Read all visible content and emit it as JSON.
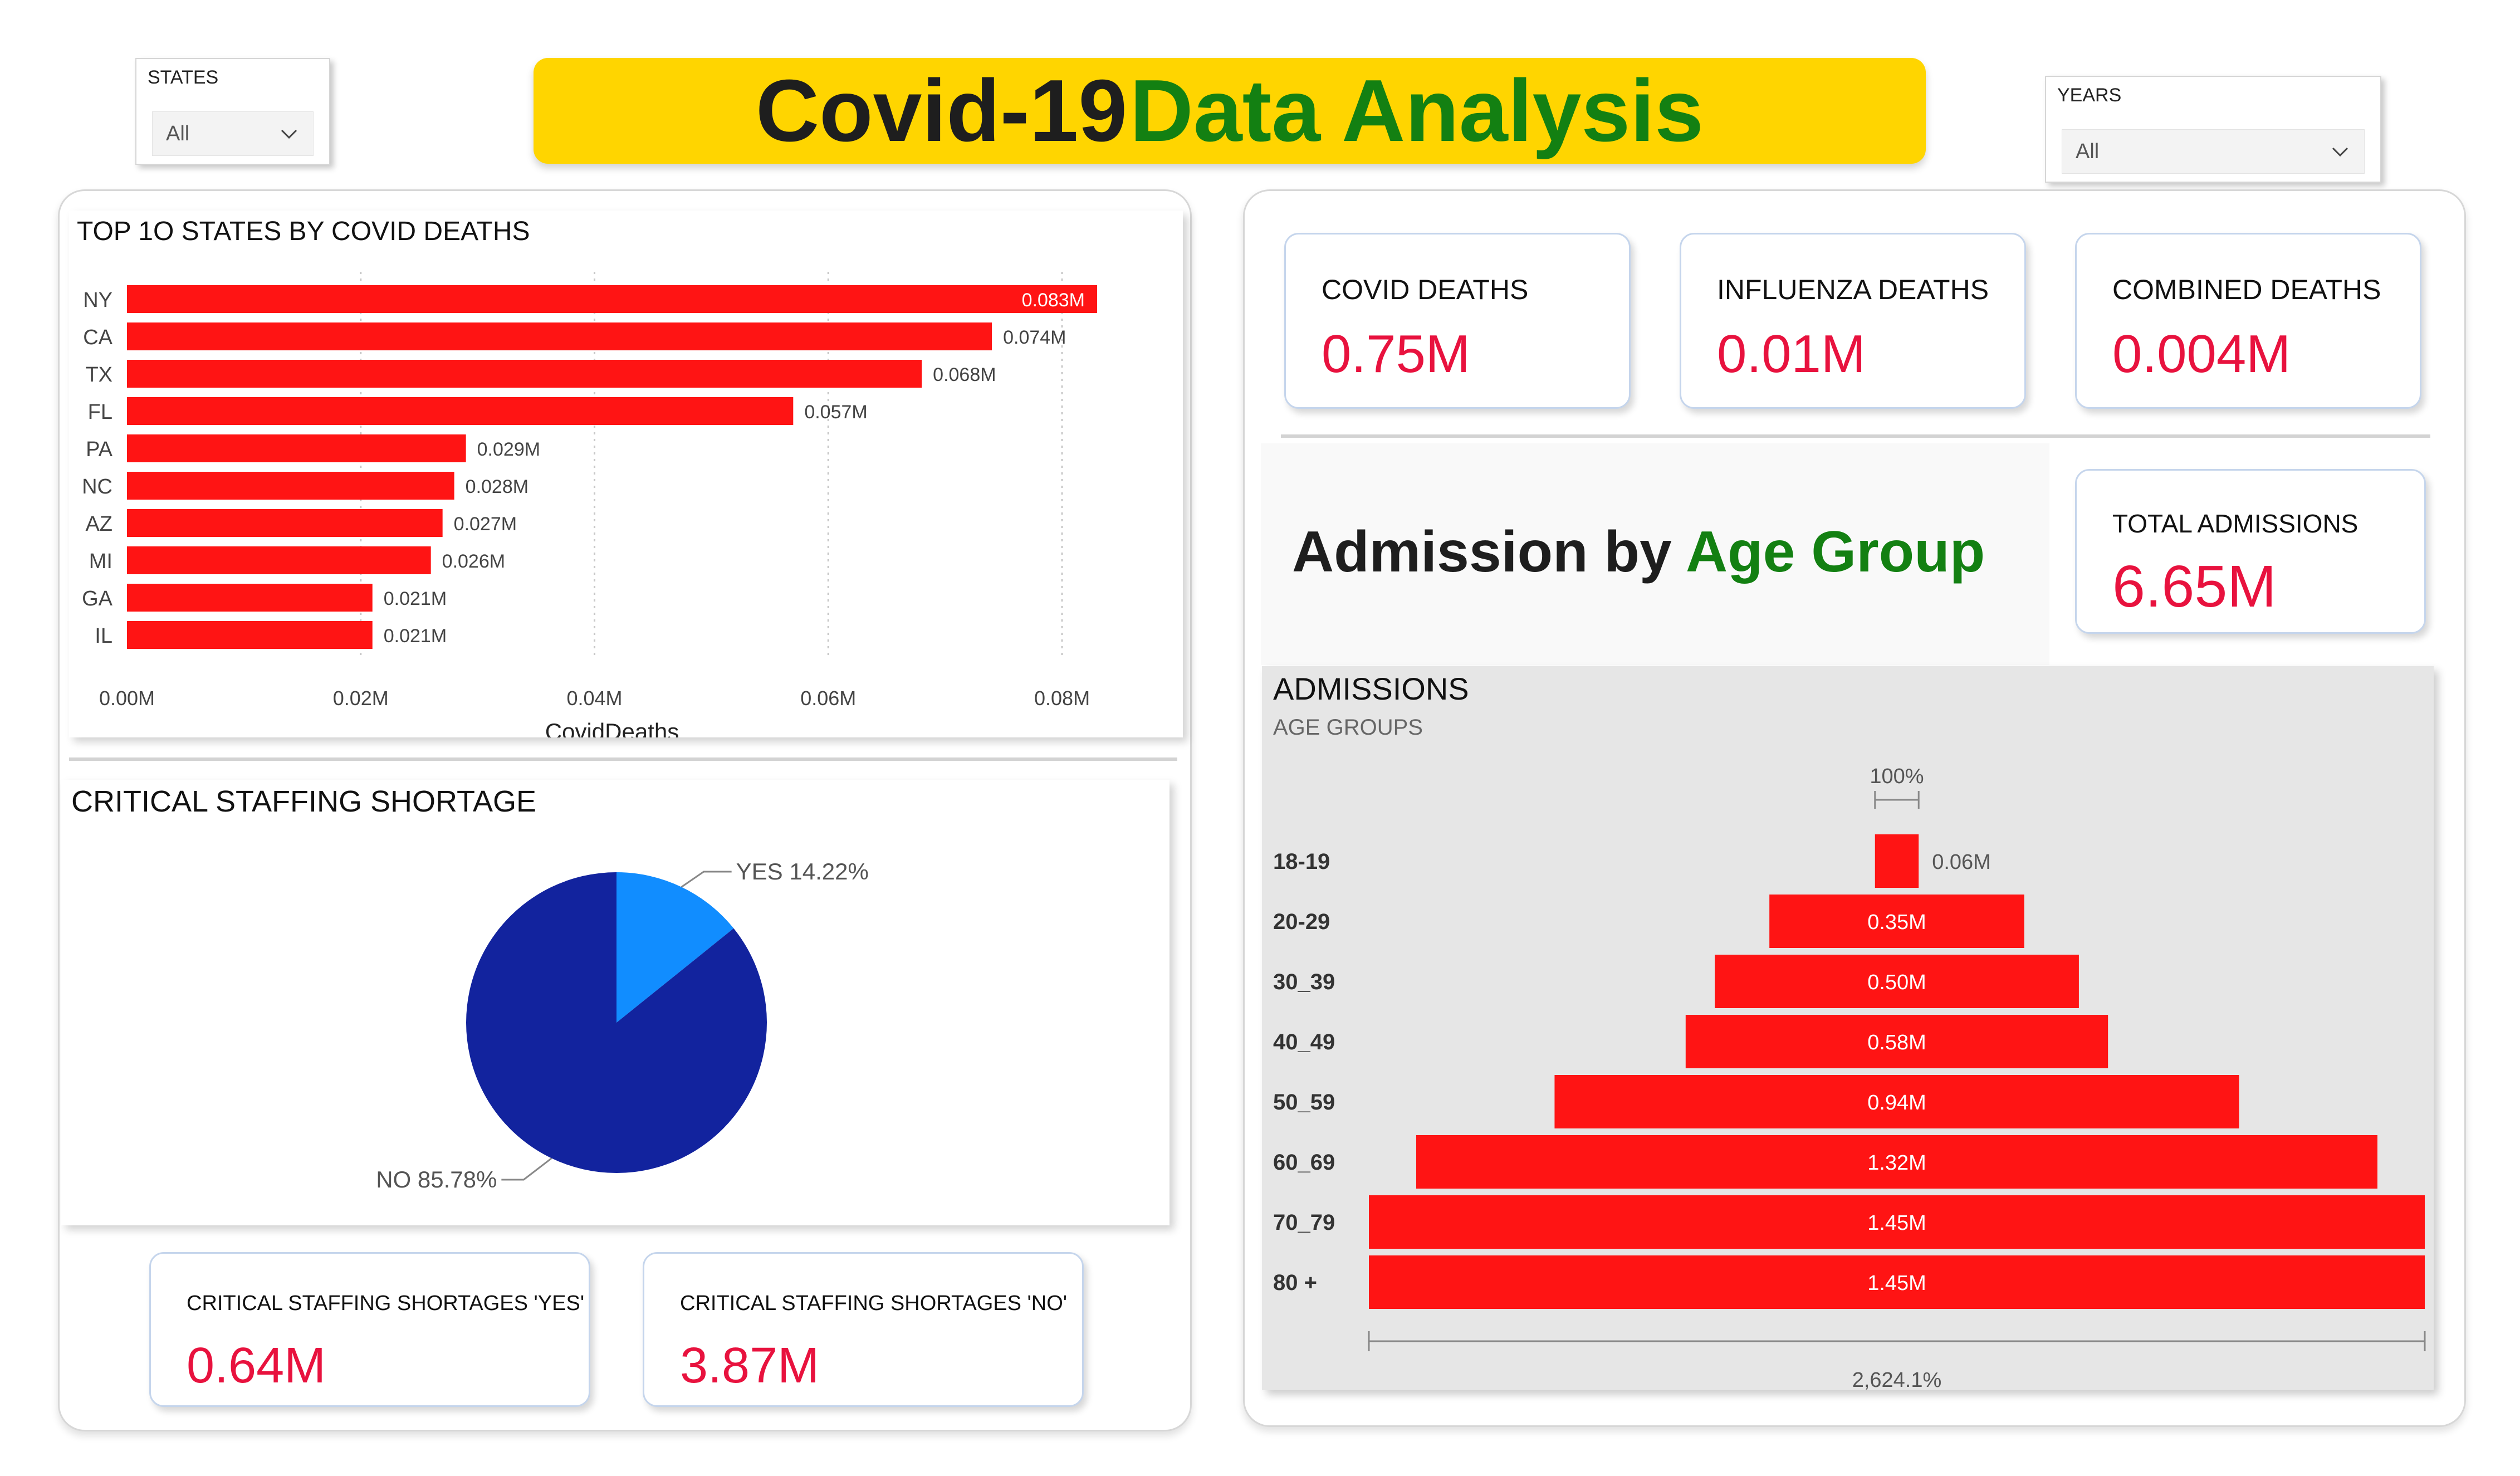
{
  "header": {
    "title_part1": "Covid-19",
    "title_part2": "Data Analysis"
  },
  "slicers": {
    "states": {
      "label": "STATES",
      "value": "All"
    },
    "years": {
      "label": "YEARS",
      "value": "All"
    }
  },
  "kpis": {
    "covid_deaths": {
      "label": "COVID DEATHS",
      "value": "0.75M"
    },
    "influenza_deaths": {
      "label": "INFLUENZA DEATHS",
      "value": "0.01M"
    },
    "combined_deaths": {
      "label": "COMBINED DEATHS",
      "value": "0.004M"
    },
    "total_admissions": {
      "label": "TOTAL ADMISSIONS",
      "value": "6.65M"
    },
    "staffing_yes": {
      "label": "CRITICAL STAFFING SHORTAGES 'YES'",
      "value": "0.64M"
    },
    "staffing_no": {
      "label": "CRITICAL STAFFING SHORTAGES 'NO'",
      "value": "3.87M"
    }
  },
  "admission_section": {
    "part1": "Admission by",
    "part2": "Age Group"
  },
  "colors": {
    "bar_red": "#FF1414",
    "pie_dark": "#12239E",
    "pie_light": "#118DFF",
    "accent_green": "#138012",
    "kpi_red": "#E8123E",
    "title_yellow": "#FFD500"
  },
  "chart_data": [
    {
      "id": "top10",
      "type": "bar",
      "orientation": "horizontal",
      "title": "TOP 1O STATES BY COVID DEATHS",
      "categories": [
        "NY",
        "CA",
        "TX",
        "FL",
        "PA",
        "NC",
        "AZ",
        "MI",
        "GA",
        "IL"
      ],
      "values": [
        0.083,
        0.074,
        0.068,
        0.057,
        0.029,
        0.028,
        0.027,
        0.026,
        0.021,
        0.021
      ],
      "data_labels": [
        "0.083M",
        "0.074M",
        "0.068M",
        "0.057M",
        "0.029M",
        "0.028M",
        "0.027M",
        "0.026M",
        "0.021M",
        "0.021M"
      ],
      "xticks": [
        "0.00M",
        "0.02M",
        "0.04M",
        "0.06M",
        "0.08M"
      ],
      "xtick_values": [
        0,
        0.02,
        0.04,
        0.06,
        0.08
      ],
      "xlabel": "CovidDeaths",
      "xlim": [
        0,
        0.083
      ],
      "grid": true
    },
    {
      "id": "staffing",
      "type": "pie",
      "title": "CRITICAL STAFFING SHORTAGE",
      "slices": [
        {
          "label": "YES",
          "value": 14.22,
          "display": "YES 14.22%"
        },
        {
          "label": "NO",
          "value": 85.78,
          "display": "NO 85.78%"
        }
      ]
    },
    {
      "id": "admissions",
      "type": "bar",
      "subtype": "funnel",
      "title": "ADMISSIONS",
      "subtitle": "AGE GROUPS",
      "categories": [
        "18-19",
        "20-29",
        "30_39",
        "40_49",
        "50_59",
        "60_69",
        "70_79",
        "80 +"
      ],
      "values": [
        0.06,
        0.35,
        0.5,
        0.58,
        0.94,
        1.32,
        1.45,
        1.45
      ],
      "data_labels": [
        "0.06M",
        "0.35M",
        "0.50M",
        "0.58M",
        "0.94M",
        "1.32M",
        "1.45M",
        "1.45M"
      ],
      "top_label": "100%",
      "bottom_label": "2,624.1%"
    }
  ]
}
